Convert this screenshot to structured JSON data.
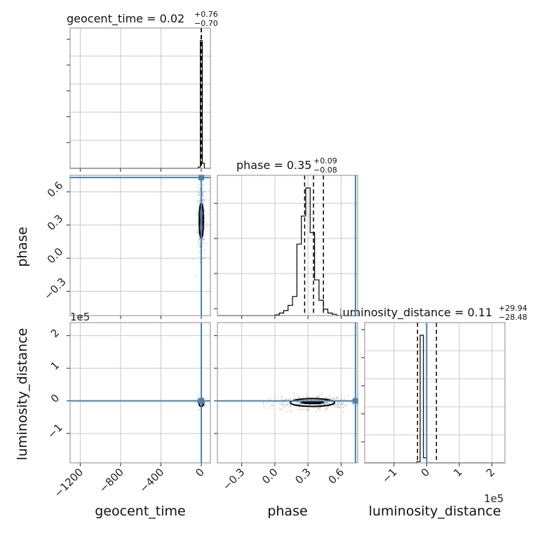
{
  "colors": {
    "truth": "#4682b4",
    "hist": "#000000",
    "grid": "#c8c8c8",
    "scatter": "#9a9a9a"
  },
  "chart_data": {
    "type": "corner",
    "grid": true,
    "parameters": [
      "geocent_time",
      "phase",
      "luminosity_distance"
    ],
    "titles": [
      {
        "param": "geocent_time",
        "text": "geocent_time = 0.02",
        "plus": "+0.76",
        "minus": "−0.70"
      },
      {
        "param": "phase",
        "text": "phase = 0.35",
        "plus": "+0.09",
        "minus": "−0.08"
      },
      {
        "param": "luminosity_distance",
        "text": "luminosity_distance = 0.11",
        "plus": "+29.94",
        "minus": "−28.48"
      }
    ],
    "axis_labels": {
      "x": [
        "geocent_time",
        "phase",
        "luminosity_distance"
      ],
      "y": [
        "phase",
        "luminosity_distance"
      ]
    },
    "offset_texts": {
      "luminosity_distance_y": "1e5",
      "luminosity_distance_x": "1e5"
    },
    "ranges": {
      "geocent_time": [
        -1300,
        90
      ],
      "phase": [
        -0.52,
        0.75
      ],
      "luminosity_distance": [
        -1.9,
        2.4
      ]
    },
    "ticks": {
      "geocent_time": [
        "−1200",
        "−800",
        "−400",
        "0"
      ],
      "geocent_time_values": [
        -1200,
        -800,
        -400,
        0
      ],
      "phase": [
        "−0.3",
        "0.0",
        "0.3",
        "0.6"
      ],
      "phase_values": [
        -0.3,
        0.0,
        0.3,
        0.6
      ],
      "luminosity_distance": [
        "−1",
        "0",
        "1",
        "2"
      ],
      "luminosity_distance_values": [
        -1,
        0,
        1,
        2
      ]
    },
    "truths": {
      "geocent_time": 0,
      "phase": 0.73,
      "luminosity_distance": 0.0
    },
    "quantiles": {
      "geocent_time": [
        -0.68,
        0.02,
        0.78
      ],
      "phase": [
        0.27,
        0.35,
        0.44
      ],
      "luminosity_distance": [
        -0.28,
        0.0,
        0.3
      ]
    },
    "histograms": {
      "geocent_time": {
        "edges": [
          -30,
          -10,
          10,
          30,
          50
        ],
        "counts": [
          0.01,
          1.0,
          0.04,
          0.0
        ]
      },
      "phase": {
        "edges": [
          -0.52,
          0.0,
          0.04,
          0.08,
          0.12,
          0.16,
          0.2,
          0.24,
          0.28,
          0.32,
          0.36,
          0.4,
          0.44,
          0.48,
          0.52,
          0.56,
          0.6,
          0.64
        ],
        "counts": [
          0.0,
          0.005,
          0.02,
          0.04,
          0.08,
          0.15,
          0.56,
          0.78,
          1.0,
          0.65,
          0.28,
          0.12,
          0.05,
          0.02,
          0.01,
          0.0,
          0.0
        ]
      },
      "luminosity_distance": {
        "edges": [
          -0.3,
          -0.2,
          -0.1,
          0.0,
          0.1,
          0.2
        ],
        "counts": [
          0.01,
          1.0,
          0.04,
          0.0,
          0.0
        ]
      }
    },
    "contours": {
      "phase_vs_geocent_time": {
        "center": [
          0,
          0.34
        ],
        "width": 20,
        "height": 0.16
      },
      "luminosity_distance_vs_geocent_time": {
        "center": [
          0,
          -0.05
        ],
        "width": 25,
        "height": 0.12
      },
      "luminosity_distance_vs_phase": {
        "center": [
          0.34,
          -0.05
        ],
        "width": 0.2,
        "height": 0.12
      }
    }
  }
}
